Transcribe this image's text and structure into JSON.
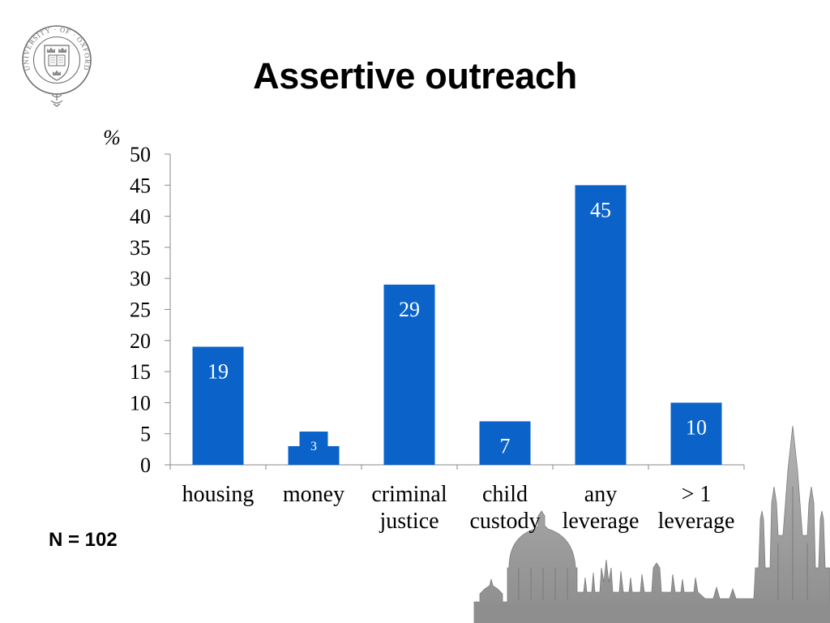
{
  "slide": {
    "title": "Assertive outreach",
    "footnote": "N = 102"
  },
  "logo": {
    "ring_text": "UNIVERSITY · OF · OXFORD"
  },
  "chart_data": {
    "type": "bar",
    "title": "",
    "xlabel": "",
    "ylabel": "%",
    "categories": [
      [
        "housing"
      ],
      [
        "money"
      ],
      [
        "criminal",
        "justice"
      ],
      [
        "child",
        "custody"
      ],
      [
        "any",
        "leverage"
      ],
      [
        "> 1",
        "leverage"
      ]
    ],
    "values": [
      19,
      3,
      29,
      7,
      45,
      10
    ],
    "ylim": [
      0,
      50
    ],
    "yticks": [
      0,
      5,
      10,
      15,
      20,
      25,
      30,
      35,
      40,
      45,
      50
    ],
    "grid": false,
    "legend": "none",
    "data_labels": "inside-top",
    "bar_color": "#0B63C9",
    "label_color": "#FFFFFF"
  }
}
